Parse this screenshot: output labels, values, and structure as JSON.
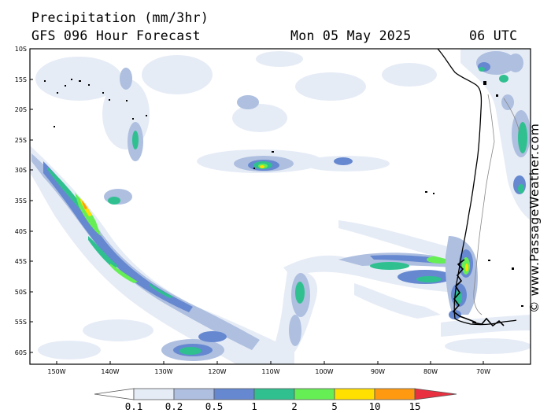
{
  "header": {
    "title": "Precipitation (mm/3hr)",
    "subtitle": "GFS 096 Hour Forecast",
    "date": "Mon 05 May 2025",
    "time": "06 UTC"
  },
  "map": {
    "lat_labels": [
      "10S",
      "15S",
      "20S",
      "25S",
      "30S",
      "35S",
      "40S",
      "45S",
      "50S",
      "55S",
      "60S"
    ],
    "lon_labels": [
      "150W",
      "140W",
      "130W",
      "120W",
      "110W",
      "100W",
      "90W",
      "80W",
      "70W"
    ],
    "lat_range": [
      -10,
      -62
    ],
    "lon_range": [
      -155,
      -65
    ]
  },
  "credit": "© www.PassageWeather.com",
  "legend": {
    "labels": [
      "0.1",
      "0.2",
      "0.5",
      "1",
      "2",
      "5",
      "10",
      "15"
    ],
    "colors": [
      "#ffffff",
      "#e6ecf6",
      "#aebfe0",
      "#6688d0",
      "#30c090",
      "#66ee55",
      "#ffe000",
      "#ff9a10",
      "#e83040"
    ]
  }
}
